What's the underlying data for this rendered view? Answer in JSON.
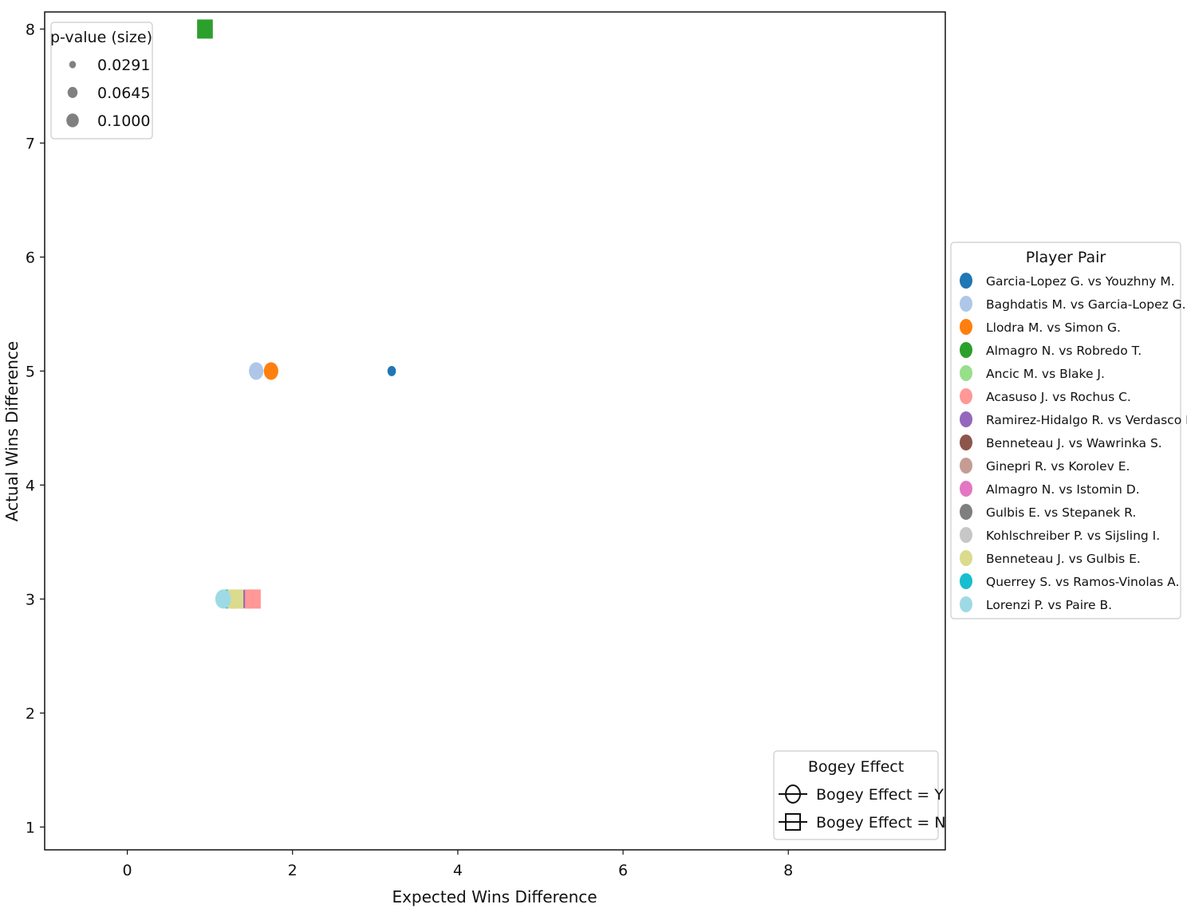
{
  "chart_data": {
    "type": "scatter",
    "xlabel": "Expected Wins Difference",
    "ylabel": "Actual Wins Difference",
    "xlim": [
      -1.0,
      9.9
    ],
    "ylim": [
      0.8,
      8.15
    ],
    "xticks": [
      0,
      2,
      4,
      6,
      8
    ],
    "yticks": [
      1,
      2,
      3,
      4,
      5,
      6,
      7,
      8
    ],
    "grid": false,
    "size_legend": {
      "title": "p-value (size)",
      "placement": "top-left",
      "entries": [
        {
          "label": "0.0291",
          "value": 0.0291
        },
        {
          "label": "0.0645",
          "value": 0.0645
        },
        {
          "label": "0.1000",
          "value": 0.1
        }
      ]
    },
    "player_legend": {
      "title": "Player Pair",
      "placement": "outside-right",
      "entries": [
        {
          "label": "Garcia-Lopez G. vs Youzhny M.",
          "color": "#1f77b4"
        },
        {
          "label": "Baghdatis M. vs Garcia-Lopez G.",
          "color": "#aec7e8"
        },
        {
          "label": "Llodra M. vs Simon G.",
          "color": "#ff7f0e"
        },
        {
          "label": "Almagro N. vs Robredo T.",
          "color": "#2ca02c"
        },
        {
          "label": "Ancic M. vs Blake J.",
          "color": "#98df8a"
        },
        {
          "label": "Acasuso J. vs Rochus C.",
          "color": "#ff9896"
        },
        {
          "label": "Ramirez-Hidalgo R. vs Verdasco F.",
          "color": "#9467bd"
        },
        {
          "label": "Benneteau J. vs Wawrinka S.",
          "color": "#8c564b"
        },
        {
          "label": "Ginepri R. vs Korolev E.",
          "color": "#c49c94"
        },
        {
          "label": "Almagro N. vs Istomin D.",
          "color": "#e377c2"
        },
        {
          "label": "Gulbis E. vs Stepanek R.",
          "color": "#7f7f7f"
        },
        {
          "label": "Kohlschreiber P. vs Sijsling I.",
          "color": "#c7c7c7"
        },
        {
          "label": "Benneteau J. vs Gulbis E.",
          "color": "#dbdb8d"
        },
        {
          "label": "Querrey S. vs Ramos-Vinolas A.",
          "color": "#17becf"
        },
        {
          "label": "Lorenzi P. vs Paire B.",
          "color": "#9edae5"
        }
      ]
    },
    "marker_legend": {
      "title": "Bogey Effect",
      "placement": "bottom-right",
      "entries": [
        {
          "label": "Bogey Effect = Y",
          "marker": "circle"
        },
        {
          "label": "Bogey Effect = N",
          "marker": "square"
        }
      ]
    },
    "points": [
      {
        "pair": "Kohlschreiber P. vs Sijsling I.",
        "x": 1.5,
        "y": 3,
        "p": 0.1,
        "bogey": "Y"
      },
      {
        "pair": "Ginepri R. vs Korolev E.",
        "x": 1.42,
        "y": 3,
        "p": 0.1,
        "bogey": "Y"
      },
      {
        "pair": "Gulbis E. vs Stepanek R.",
        "x": 1.47,
        "y": 3,
        "p": 0.1,
        "bogey": "Y"
      },
      {
        "pair": "Ancic M. vs Blake J.",
        "x": 1.22,
        "y": 3,
        "p": 0.1,
        "bogey": "Y"
      },
      {
        "pair": "Benneteau J. vs Wawrinka S.",
        "x": 1.3,
        "y": 3,
        "p": 0.1,
        "bogey": "Y"
      },
      {
        "pair": "Ramirez-Hidalgo R. vs Verdasco F.",
        "x": 1.38,
        "y": 3,
        "p": 0.1,
        "bogey": "Y"
      },
      {
        "pair": "Almagro N. vs Istomin D.",
        "x": 1.27,
        "y": 3,
        "p": 0.1,
        "bogey": "Y"
      },
      {
        "pair": "Querrey S. vs Ramos-Vinolas A.",
        "x": 1.2,
        "y": 3,
        "p": 0.1,
        "bogey": "Y"
      },
      {
        "pair": "Acasuso J. vs Rochus C.",
        "x": 1.52,
        "y": 3,
        "p": 0.1,
        "bogey": "N"
      },
      {
        "pair": "Benneteau J. vs Gulbis E.",
        "x": 1.31,
        "y": 3,
        "p": 0.1,
        "bogey": "N"
      },
      {
        "pair": "Lorenzi P. vs Paire B.",
        "x": 1.16,
        "y": 3,
        "p": 0.1,
        "bogey": "Y"
      },
      {
        "pair": "Baghdatis M. vs Garcia-Lopez G.",
        "x": 1.56,
        "y": 5,
        "p": 0.085,
        "bogey": "Y"
      },
      {
        "pair": "Llodra M. vs Simon G.",
        "x": 1.74,
        "y": 5,
        "p": 0.085,
        "bogey": "Y"
      },
      {
        "pair": "Garcia-Lopez G. vs Youzhny M.",
        "x": 3.2,
        "y": 5,
        "p": 0.0291,
        "bogey": "Y"
      },
      {
        "pair": "Almagro N. vs Robredo T.",
        "x": 0.94,
        "y": 8,
        "p": 0.1,
        "bogey": "N"
      }
    ]
  }
}
